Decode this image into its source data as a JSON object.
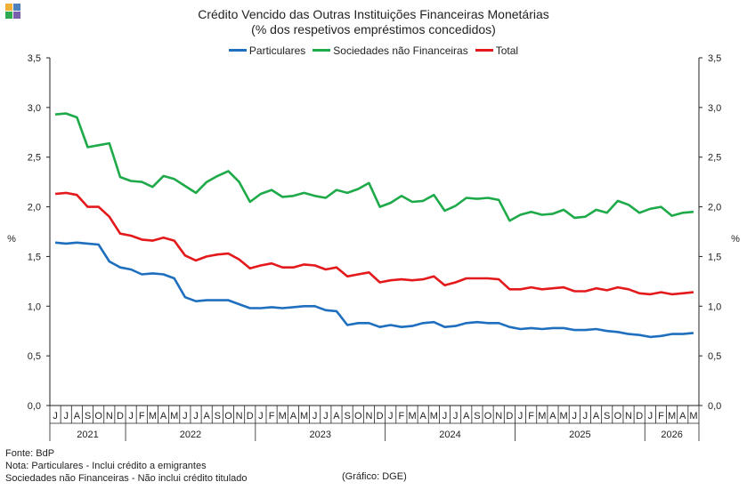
{
  "logo": {
    "colors": [
      "#f2b134",
      "#4f81bd",
      "#2eaa4f",
      "#7a5fae"
    ]
  },
  "title": {
    "line1": "Crédito Vencido das Outras Instituições Financeiras Monetárias",
    "line2": "(% dos respetivos empréstimos concedidos)"
  },
  "footer": {
    "source": "Fonte: BdP",
    "note1": "Nota: Particulares - Inclui crédito a emigrantes",
    "note2": "Sociedades não Financeiras - Não inclui crédito titulado",
    "credit": "(Gráfico: DGE)"
  },
  "chart_data": {
    "type": "line",
    "title": "Crédito Vencido das Outras Instituições Financeiras Monetárias",
    "subtitle": "(% dos respetivos empréstimos concedidos)",
    "ylabel_left": "%",
    "ylabel_right": "%",
    "ylim": [
      0,
      3.5
    ],
    "yticks": [
      "0,0",
      "0,5",
      "1,0",
      "1,5",
      "2,0",
      "2,5",
      "3,0",
      "3,5"
    ],
    "ytick_values": [
      0,
      0.5,
      1.0,
      1.5,
      2.0,
      2.5,
      3.0,
      3.5
    ],
    "grid": false,
    "legend_position": "top-center",
    "x": [
      "J",
      "J",
      "A",
      "S",
      "O",
      "N",
      "D",
      "J",
      "F",
      "M",
      "A",
      "M",
      "J",
      "J",
      "A",
      "S",
      "O",
      "N",
      "D",
      "J",
      "F",
      "M",
      "A",
      "M",
      "J",
      "J",
      "A",
      "S",
      "O",
      "N",
      "D",
      "J",
      "F",
      "M",
      "A",
      "M",
      "J",
      "J",
      "A",
      "S",
      "O",
      "N",
      "D",
      "J",
      "F",
      "M",
      "A",
      "M",
      "J",
      "J",
      "A",
      "S",
      "O",
      "N",
      "D",
      "J",
      "F",
      "M",
      "A",
      "M"
    ],
    "years": [
      {
        "label": "2021",
        "start": 0,
        "end": 6
      },
      {
        "label": "2022",
        "start": 7,
        "end": 18
      },
      {
        "label": "2023",
        "start": 19,
        "end": 30
      },
      {
        "label": "2024",
        "start": 31,
        "end": 42
      },
      {
        "label": "2025",
        "start": 43,
        "end": 54
      },
      {
        "label": "2026",
        "start": 55,
        "end": 59
      }
    ],
    "series": [
      {
        "name": "Particulares",
        "color": "#1f6fbf",
        "values": [
          1.64,
          1.63,
          1.64,
          1.63,
          1.62,
          1.45,
          1.39,
          1.37,
          1.32,
          1.33,
          1.32,
          1.28,
          1.09,
          1.05,
          1.06,
          1.06,
          1.06,
          1.02,
          0.98,
          0.98,
          0.99,
          0.98,
          0.99,
          1.0,
          1.0,
          0.96,
          0.95,
          0.81,
          0.83,
          0.83,
          0.79,
          0.81,
          0.79,
          0.8,
          0.83,
          0.84,
          0.79,
          0.8,
          0.83,
          0.84,
          0.83,
          0.83,
          0.79,
          0.77,
          0.78,
          0.77,
          0.78,
          0.78,
          0.76,
          0.76,
          0.77,
          0.75,
          0.74,
          0.72,
          0.71,
          0.69,
          0.7,
          0.72,
          0.72,
          0.73
        ]
      },
      {
        "name": "Sociedades não Financeiras",
        "color": "#1faa4a",
        "values": [
          2.93,
          2.94,
          2.9,
          2.6,
          2.62,
          2.64,
          2.3,
          2.26,
          2.25,
          2.2,
          2.31,
          2.28,
          2.21,
          2.14,
          2.25,
          2.31,
          2.36,
          2.25,
          2.05,
          2.13,
          2.17,
          2.1,
          2.11,
          2.14,
          2.11,
          2.09,
          2.17,
          2.14,
          2.18,
          2.24,
          2.0,
          2.04,
          2.11,
          2.05,
          2.06,
          2.12,
          1.96,
          2.01,
          2.09,
          2.08,
          2.09,
          2.07,
          1.86,
          1.92,
          1.95,
          1.92,
          1.93,
          1.97,
          1.89,
          1.9,
          1.97,
          1.94,
          2.06,
          2.02,
          1.94,
          1.98,
          2.0,
          1.91,
          1.94,
          1.95
        ]
      },
      {
        "name": "Total",
        "color": "#e3191c",
        "values": [
          2.13,
          2.14,
          2.12,
          2.0,
          2.0,
          1.9,
          1.73,
          1.71,
          1.67,
          1.66,
          1.69,
          1.66,
          1.51,
          1.46,
          1.5,
          1.52,
          1.53,
          1.47,
          1.38,
          1.41,
          1.43,
          1.39,
          1.39,
          1.42,
          1.41,
          1.37,
          1.39,
          1.3,
          1.32,
          1.34,
          1.24,
          1.26,
          1.27,
          1.26,
          1.27,
          1.3,
          1.21,
          1.24,
          1.28,
          1.28,
          1.28,
          1.27,
          1.17,
          1.17,
          1.19,
          1.17,
          1.18,
          1.19,
          1.15,
          1.15,
          1.18,
          1.16,
          1.19,
          1.17,
          1.13,
          1.12,
          1.14,
          1.12,
          1.13,
          1.14
        ]
      }
    ]
  }
}
